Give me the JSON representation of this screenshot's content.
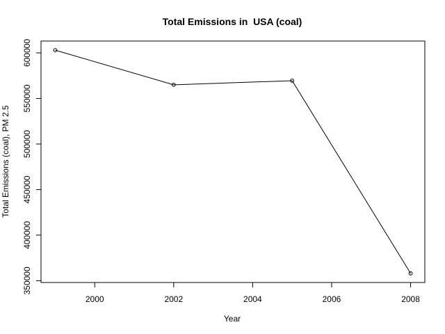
{
  "chart_data": {
    "type": "line",
    "title": "Total Emissions in  USA (coal)",
    "xlabel": "Year",
    "ylabel": "Total Emissions (coal), PM 2.5",
    "x": [
      1999,
      2002,
      2005,
      2008
    ],
    "series": [
      {
        "values": [
          603000,
          565000,
          569500,
          358000
        ]
      }
    ],
    "xlim": [
      1998.64,
      2008.36
    ],
    "ylim": [
      348000,
      613000
    ],
    "xticks": [
      2000,
      2002,
      2004,
      2006,
      2008
    ],
    "yticks": [
      350000,
      400000,
      450000,
      500000,
      550000,
      600000
    ],
    "xtick_labels": [
      "2000",
      "2002",
      "2004",
      "2006",
      "2008"
    ],
    "ytick_labels": [
      "350000",
      "400000",
      "450000",
      "500000",
      "550000",
      "600000"
    ],
    "grid": false,
    "marker": "open-circle",
    "line_color": "#000000"
  }
}
